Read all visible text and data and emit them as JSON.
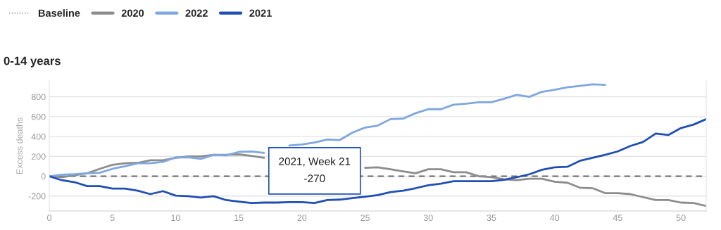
{
  "chart_data": {
    "type": "line",
    "title": "0-14 years",
    "ylabel": "Excess deaths",
    "x": [
      0,
      1,
      2,
      3,
      4,
      5,
      6,
      7,
      8,
      9,
      10,
      11,
      12,
      13,
      14,
      15,
      16,
      17,
      18,
      19,
      20,
      21,
      22,
      23,
      24,
      25,
      26,
      27,
      28,
      29,
      30,
      31,
      32,
      33,
      34,
      35,
      36,
      37,
      38,
      39,
      40,
      41,
      42,
      43,
      44,
      45,
      46,
      47,
      48,
      49,
      50,
      51,
      52
    ],
    "series": [
      {
        "name": "2020",
        "color": "#8c8c8c",
        "values": [
          0,
          -10,
          10,
          30,
          75,
          115,
          130,
          135,
          160,
          160,
          185,
          200,
          200,
          215,
          215,
          220,
          205,
          185,
          null,
          null,
          null,
          null,
          null,
          null,
          null,
          85,
          90,
          70,
          50,
          30,
          70,
          70,
          40,
          40,
          0,
          -10,
          -30,
          -40,
          -25,
          -25,
          -55,
          -65,
          -115,
          -120,
          -170,
          -170,
          -180,
          -210,
          -240,
          -240,
          -265,
          -270,
          -300
        ]
      },
      {
        "name": "2022",
        "color": "#7ea7e0",
        "values": [
          0,
          15,
          20,
          30,
          35,
          75,
          100,
          130,
          130,
          145,
          190,
          190,
          175,
          215,
          210,
          245,
          250,
          235,
          null,
          310,
          320,
          340,
          370,
          365,
          440,
          490,
          510,
          575,
          580,
          635,
          675,
          675,
          720,
          730,
          745,
          745,
          780,
          820,
          800,
          850,
          870,
          895,
          910,
          925,
          920,
          null,
          null,
          null,
          null,
          null,
          null,
          null,
          null
        ]
      },
      {
        "name": "2021",
        "color": "#1f4fb4",
        "values": [
          0,
          -40,
          -60,
          -100,
          -100,
          -125,
          -125,
          -145,
          -180,
          -150,
          -195,
          -200,
          -215,
          -200,
          -240,
          -255,
          -270,
          -265,
          -265,
          -260,
          -260,
          -270,
          -240,
          -235,
          -220,
          -205,
          -190,
          -160,
          -145,
          -120,
          -90,
          -75,
          -50,
          -50,
          -50,
          -50,
          -35,
          -10,
          20,
          65,
          90,
          95,
          155,
          185,
          215,
          250,
          305,
          345,
          430,
          415,
          485,
          520,
          575
        ]
      }
    ],
    "ref_lines": [
      {
        "axis": "y",
        "value": 0,
        "label": "Baseline",
        "color": "#666666",
        "line_style": "dashed"
      }
    ],
    "annotations": [
      {
        "text": "2021, Week 21\n-270",
        "x": 21,
        "y": -270
      }
    ],
    "xlim": [
      0,
      52
    ],
    "ylim": [
      -350,
      960
    ],
    "xticks": [
      0,
      5,
      10,
      15,
      20,
      25,
      30,
      35,
      40,
      45,
      50
    ],
    "yticks": [
      -200,
      0,
      200,
      400,
      600,
      800
    ],
    "grid": "y",
    "legend": "top left",
    "line_style": "solid",
    "marker": "none"
  }
}
